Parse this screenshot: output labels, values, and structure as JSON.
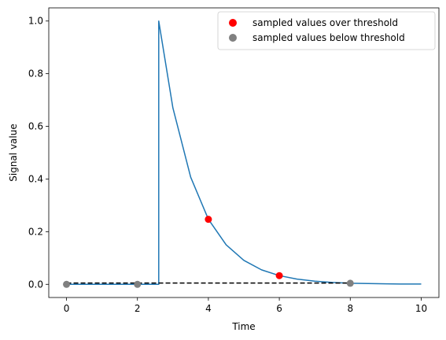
{
  "chart_data": {
    "type": "line",
    "xlabel": "Time",
    "ylabel": "Signal value",
    "xlim": [
      -0.5,
      10.5
    ],
    "ylim": [
      -0.05,
      1.05
    ],
    "xticks": [
      0,
      2,
      4,
      6,
      8,
      10
    ],
    "yticks": [
      0.0,
      0.2,
      0.4,
      0.6,
      0.8,
      1.0
    ],
    "xtick_labels": [
      "0",
      "2",
      "4",
      "6",
      "8",
      "10"
    ],
    "ytick_labels": [
      "0.0",
      "0.2",
      "0.4",
      "0.6",
      "0.8",
      "1.0"
    ],
    "grid": false,
    "legend_placement": "top-right",
    "signal": {
      "color": "#1f77b4",
      "x": [
        0,
        2.6,
        2.6,
        3.0,
        3.5,
        4.0,
        4.5,
        5.0,
        5.5,
        6.0,
        6.5,
        7.0,
        7.5,
        8.0,
        8.5,
        9.0,
        9.5,
        10.0
      ],
      "y": [
        0.0,
        0.0,
        1.0,
        0.67,
        0.407,
        0.247,
        0.15,
        0.091,
        0.055,
        0.033,
        0.02,
        0.012,
        0.007,
        0.004,
        0.003,
        0.002,
        0.001,
        0.001
      ]
    },
    "threshold": {
      "y": 0.005,
      "x_range": [
        0,
        8
      ],
      "color": "#000000",
      "style": "dashed"
    },
    "series": [
      {
        "name": "sampled values over threshold",
        "color": "#ff0000",
        "x": [
          4,
          6
        ],
        "y": [
          0.247,
          0.033
        ]
      },
      {
        "name": "sampled values below threshold",
        "color": "#808080",
        "x": [
          0,
          2,
          8
        ],
        "y": [
          0.0,
          0.0,
          0.004
        ]
      }
    ]
  }
}
